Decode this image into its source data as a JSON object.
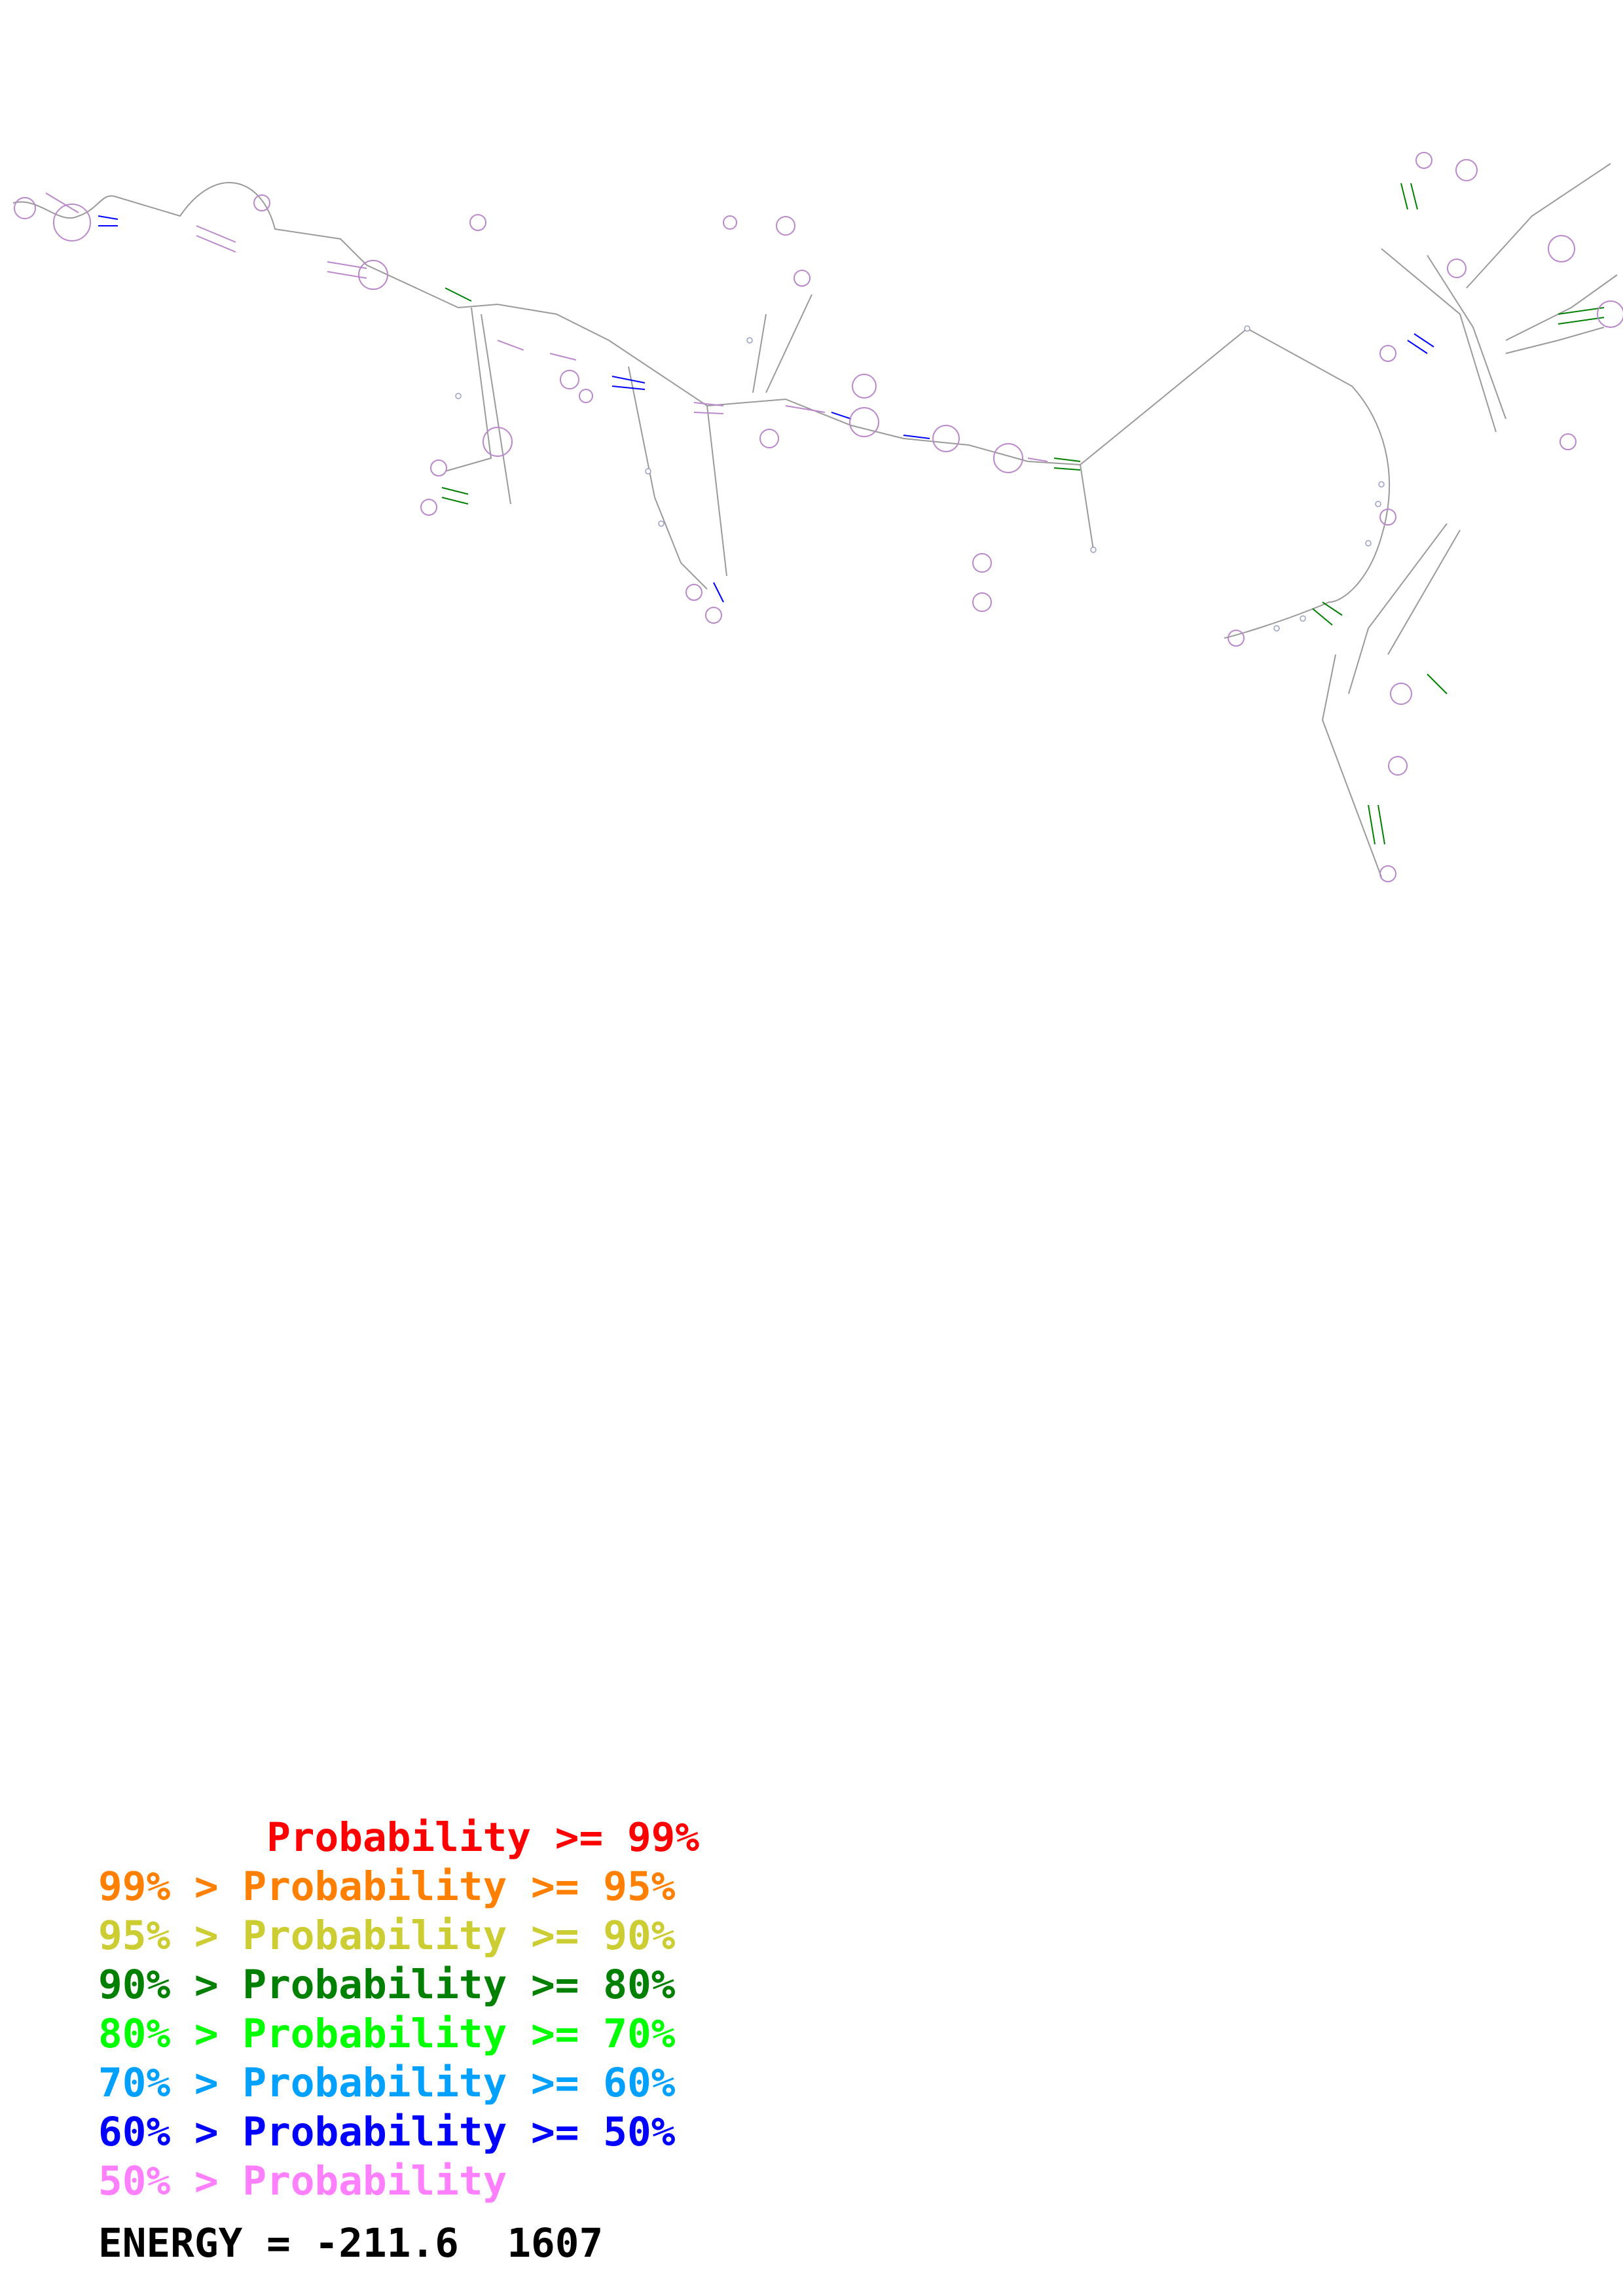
{
  "legend": {
    "items": [
      {
        "text": "       Probability >= 99%",
        "color": "#ff0000"
      },
      {
        "text": "99% > Probability >= 95%",
        "color": "#ff8000"
      },
      {
        "text": "95% > Probability >= 90%",
        "color": "#cccc33"
      },
      {
        "text": "90% > Probability >= 80%",
        "color": "#008000"
      },
      {
        "text": "80% > Probability >= 70%",
        "color": "#00ff00"
      },
      {
        "text": "70% > Probability >= 60%",
        "color": "#00a0ff"
      },
      {
        "text": "60% > Probability >= 50%",
        "color": "#0000ff"
      },
      {
        "text": "50% > Probability",
        "color": "#ff80ff"
      }
    ]
  },
  "energy": {
    "text": "ENERGY = -211.6  1607"
  },
  "structure": {
    "base_colors": {
      "backbone": "#888888",
      "default_base": "#bb88cc"
    }
  }
}
